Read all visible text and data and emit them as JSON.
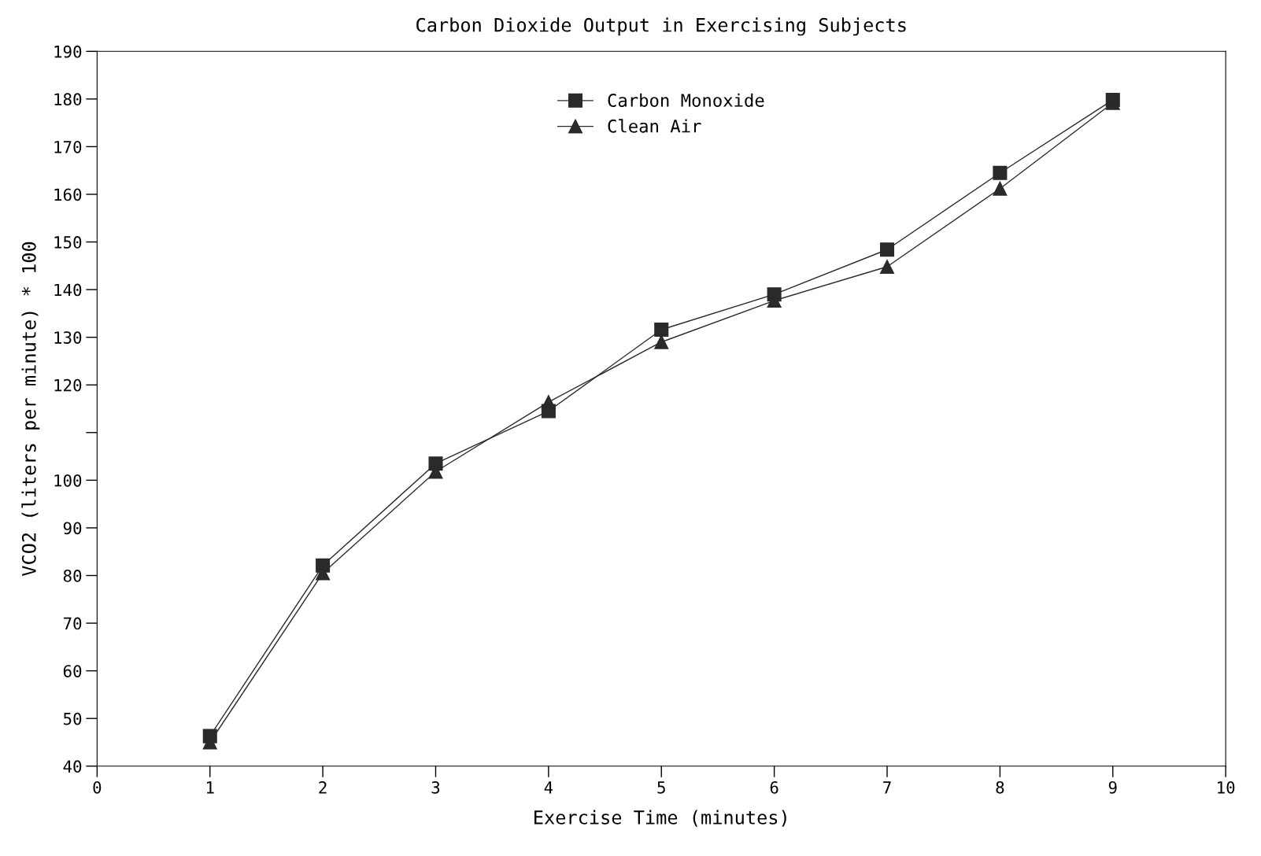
{
  "chart_data": {
    "type": "line",
    "title": "Carbon Dioxide Output in Exercising Subjects",
    "xlabel": "Exercise Time (minutes)",
    "ylabel": "VCO2 (liters per minute) * 100",
    "x": [
      1,
      2,
      3,
      4,
      5,
      6,
      7,
      8,
      9
    ],
    "series": [
      {
        "name": "Carbon Monoxide",
        "color": "#2a2a2a",
        "marker": "square",
        "values": [
          46.3,
          82.1,
          103.5,
          114.5,
          131.6,
          139,
          148.4,
          164.5,
          179.8
        ]
      },
      {
        "name": "Clean Air",
        "color": "#2a2a2a",
        "marker": "triangle",
        "values": [
          45,
          80.5,
          101.8,
          116.4,
          129,
          137.7,
          144.8,
          161.2,
          179.2
        ]
      }
    ],
    "xlim": [
      0,
      10
    ],
    "xticks": [
      0,
      1,
      2,
      3,
      4,
      5,
      6,
      7,
      8,
      9,
      10
    ],
    "ylim": [
      40,
      190
    ],
    "yticks": [
      40,
      50,
      60,
      70,
      80,
      90,
      100,
      {
        "value": 110,
        "label": null
      },
      120,
      130,
      140,
      150,
      160,
      170,
      180,
      190
    ],
    "grid": false,
    "legend": "top",
    "line_style": "solid"
  }
}
